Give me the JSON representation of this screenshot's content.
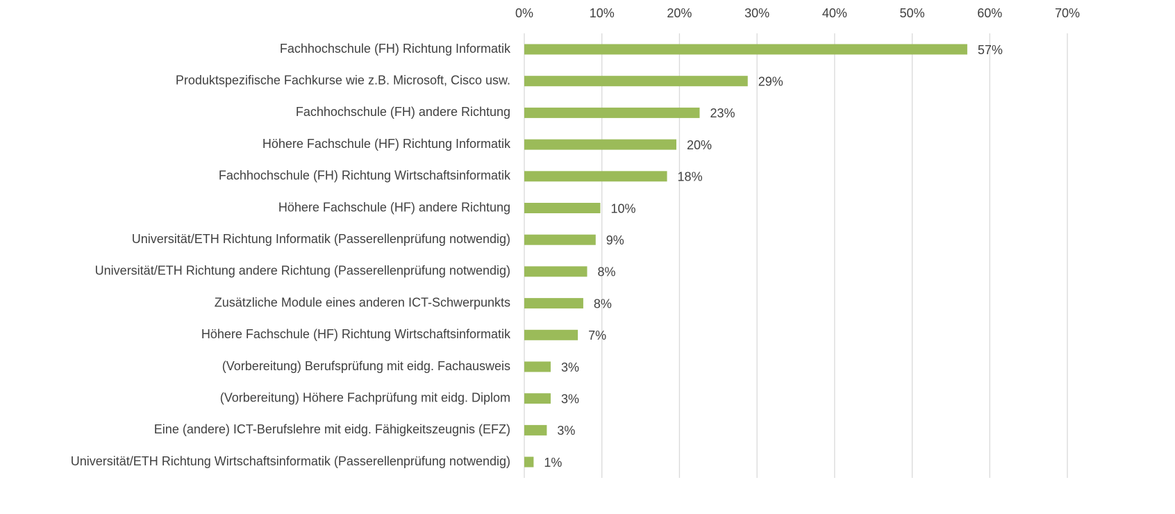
{
  "chart_data": {
    "type": "bar",
    "orientation": "horizontal",
    "categories": [
      "Fachhochschule (FH) Richtung Informatik",
      "Produktspezifische Fachkurse wie z.B. Microsoft, Cisco usw.",
      "Fachhochschule (FH) andere Richtung",
      "Höhere Fachschule (HF) Richtung Informatik",
      "Fachhochschule (FH) Richtung Wirtschaftsinformatik",
      "Höhere Fachschule (HF) andere Richtung",
      "Universität/ETH Richtung Informatik (Passerellenprüfung notwendig)",
      "Universität/ETH Richtung andere Richtung (Passerellenprüfung notwendig)",
      "Zusätzliche Module eines anderen ICT-Schwerpunkts",
      "Höhere Fachschule (HF) Richtung Wirtschaftsinformatik",
      "(Vorbereitung) Berufsprüfung mit eidg. Fachausweis",
      "(Vorbereitung) Höhere Fachprüfung mit eidg. Diplom",
      "Eine (andere) ICT-Berufslehre mit eidg. Fähigkeitszeugnis (EFZ)",
      "Universität/ETH Richtung Wirtschaftsinformatik (Passerellenprüfung notwendig)"
    ],
    "values": [
      57.1,
      28.8,
      22.6,
      19.6,
      18.4,
      9.8,
      9.2,
      8.1,
      7.6,
      6.9,
      3.4,
      3.4,
      2.9,
      1.2
    ],
    "value_labels": [
      "57%",
      "29%",
      "23%",
      "20%",
      "18%",
      "10%",
      "9%",
      "8%",
      "8%",
      "7%",
      "3%",
      "3%",
      "3%",
      "1%"
    ],
    "color": "#9bbb59",
    "xlim": [
      0,
      70
    ],
    "xticks": [
      {
        "value": 0,
        "label": "0%"
      },
      {
        "value": 10,
        "label": "10%"
      },
      {
        "value": 20,
        "label": "20%"
      },
      {
        "value": 30,
        "label": "30%"
      },
      {
        "value": 40,
        "label": "40%"
      },
      {
        "value": 50,
        "label": "50%"
      },
      {
        "value": 60,
        "label": "60%"
      },
      {
        "value": 70,
        "label": "70%"
      }
    ],
    "grid": true
  }
}
